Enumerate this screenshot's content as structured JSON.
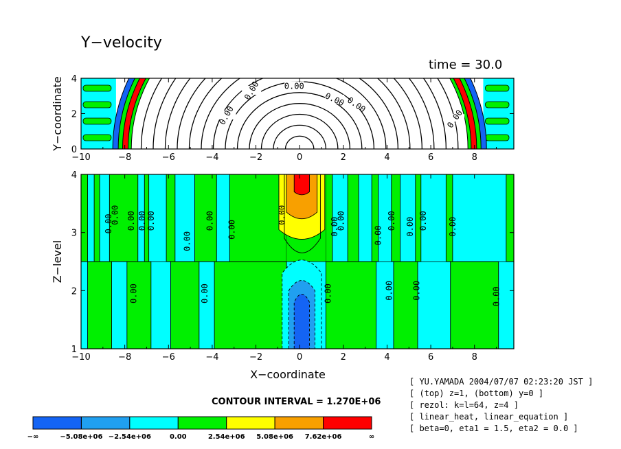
{
  "title": "Y−velocity",
  "time_label": "time = 30.0",
  "contour_interval": "CONTOUR INTERVAL = 1.270E+06",
  "info_lines": [
    "[ YU.YAMADA 2004/07/07 02:23:20 JST ]",
    "[ (top) z=1, (bottom) y=0 ]",
    "[ rezol: k=l=64, z=4 ]",
    "[ linear_heat, linear_equation ]",
    "[ beta=0, eta1 = 1.5, eta2 = 0.0 ]"
  ],
  "colors": {
    "blue": "#1464f4",
    "light_blue": "#20a0f0",
    "cyan": "#00ffff",
    "green": "#00f000",
    "yellow": "#ffff00",
    "orange": "#f8a000",
    "red": "#ff0000"
  },
  "chart_data": [
    {
      "type": "contour",
      "panel": "top",
      "xlabel": "",
      "ylabel": "Y−coordinate",
      "xlim": [
        -10,
        9.8
      ],
      "ylim": [
        0,
        4
      ],
      "x_ticks": [
        "−10",
        "−8",
        "−6",
        "−4",
        "−2",
        "0",
        "2",
        "4",
        "6",
        "8"
      ],
      "y_ticks": [
        "0",
        "2",
        "4"
      ],
      "contour_labels": [
        "0.00",
        "0.00",
        "0.00",
        "0.00",
        "0.00",
        "0.00"
      ]
    },
    {
      "type": "contour",
      "panel": "bottom",
      "xlabel": "X−coordinate",
      "ylabel": "Z−level",
      "xlim": [
        -10,
        9.8
      ],
      "ylim": [
        1,
        4
      ],
      "x_ticks": [
        "−10",
        "−8",
        "−6",
        "−4",
        "−2",
        "0",
        "2",
        "4",
        "6",
        "8"
      ],
      "y_ticks": [
        "1",
        "2",
        "3",
        "4"
      ],
      "contour_labels": [
        "0.00",
        "0.00",
        "0.00",
        "0.00",
        "0.00",
        "0.00",
        "0.00",
        "0.00",
        "0.00",
        "0.00",
        "0.00",
        "0.00",
        "0.00",
        "0.00",
        "0.00",
        "0.00",
        "0.00",
        "0.00",
        "0.00",
        "0.00",
        "0.00",
        "0.00"
      ]
    }
  ],
  "colorbar": {
    "type": "legend",
    "labels": [
      "−∞",
      "−5.08e+06",
      "−2.54e+06",
      "0.00",
      "2.54e+06",
      "5.08e+06",
      "7.62e+06",
      "∞"
    ],
    "bins": [
      {
        "from": "−∞",
        "to": "−5.08e+06",
        "color": "#1464f4"
      },
      {
        "from": "−5.08e+06",
        "to": "−2.54e+06",
        "color": "#20a0f0"
      },
      {
        "from": "−2.54e+06",
        "to": "0.00",
        "color": "#00ffff"
      },
      {
        "from": "0.00",
        "to": "2.54e+06",
        "color": "#00f000"
      },
      {
        "from": "2.54e+06",
        "to": "5.08e+06",
        "color": "#ffff00"
      },
      {
        "from": "5.08e+06",
        "to": "7.62e+06",
        "color": "#f8a000"
      },
      {
        "from": "7.62e+06",
        "to": "∞",
        "color": "#ff0000"
      }
    ]
  }
}
